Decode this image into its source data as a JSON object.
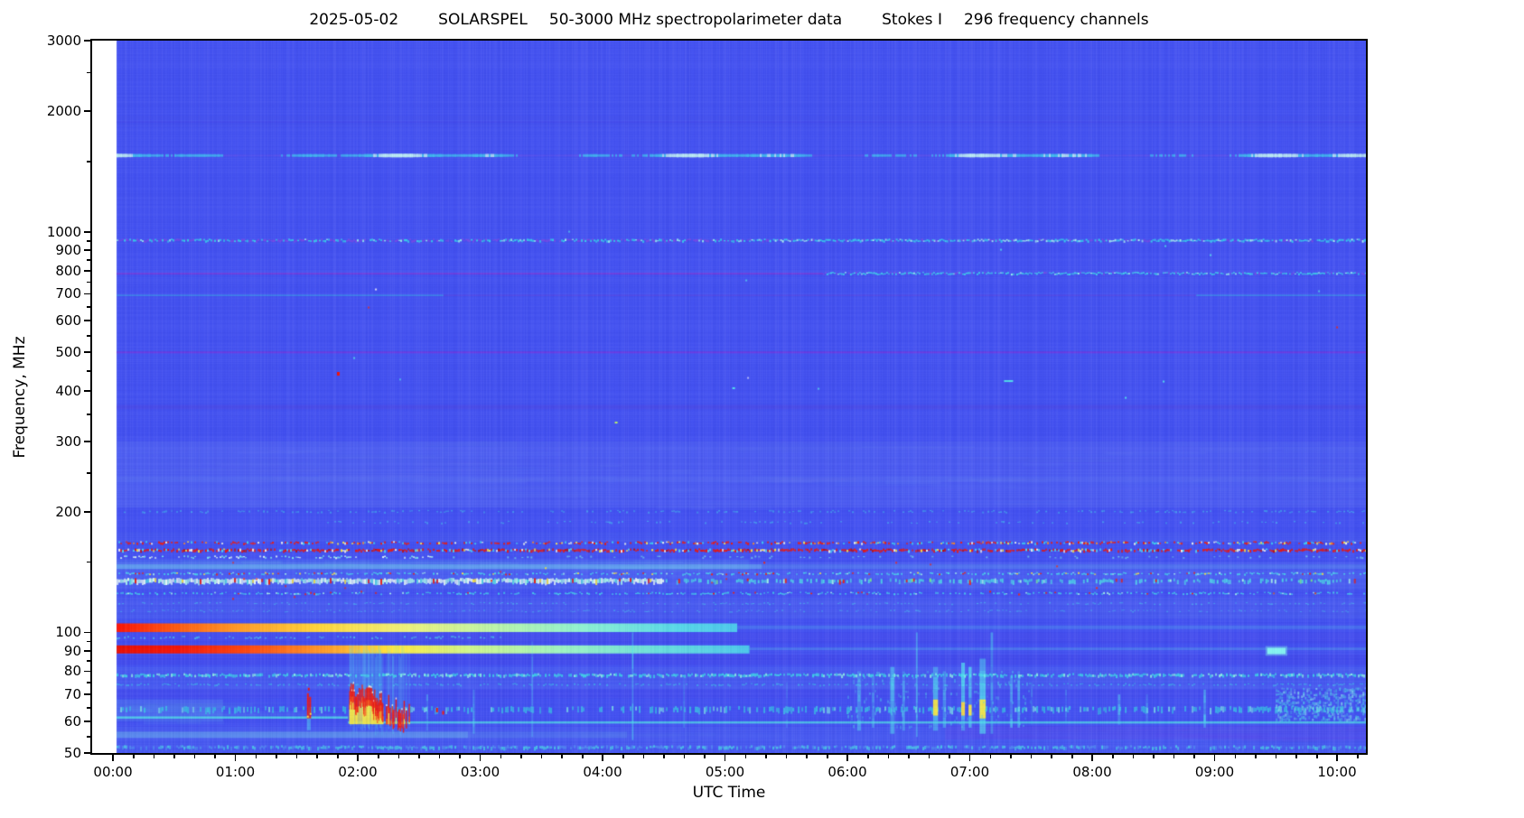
{
  "title": {
    "date": "2025-05-02",
    "instrument": "SOLARSPEL",
    "description": "50-3000 MHz spectropolarimeter data",
    "stokes": "Stokes I",
    "channels": "296 frequency channels"
  },
  "chart_data": {
    "type": "heatmap",
    "title": "2025-05-02  SOLARSPEL  50-3000 MHz spectropolarimeter data  Stokes I  296 frequency channels",
    "xlabel": "UTC Time",
    "ylabel": "Frequency, MHz",
    "x_axis": {
      "min_h": -0.17,
      "max_h": 10.236,
      "data_start_h": 0.03,
      "major_ticks": [
        {
          "h": 0,
          "label": "00:00"
        },
        {
          "h": 1,
          "label": "01:00"
        },
        {
          "h": 2,
          "label": "02:00"
        },
        {
          "h": 3,
          "label": "03:00"
        },
        {
          "h": 4,
          "label": "04:00"
        },
        {
          "h": 5,
          "label": "05:00"
        },
        {
          "h": 6,
          "label": "06:00"
        },
        {
          "h": 7,
          "label": "07:00"
        },
        {
          "h": 8,
          "label": "08:00"
        },
        {
          "h": 9,
          "label": "09:00"
        },
        {
          "h": 10,
          "label": "10:00"
        }
      ],
      "minor_step_min": 10
    },
    "y_axis": {
      "scale": "log",
      "min_mhz": 50,
      "max_mhz": 3000,
      "major_ticks": [
        3000,
        2000,
        1000,
        900,
        800,
        700,
        600,
        500,
        400,
        300,
        200,
        100,
        90,
        80,
        70,
        60,
        50
      ],
      "minor_ticks": [
        2500,
        1500,
        950,
        850,
        750,
        650,
        550,
        450,
        350,
        250,
        150,
        95,
        85,
        75,
        65,
        55
      ]
    },
    "colors": {
      "background": "#4452f1",
      "cyan": "#3fd9ec",
      "pale_cyan": "#a8f6ea",
      "purple": "#7a4be6",
      "red": "#f3200c",
      "yellow": "#ffe93e",
      "white_hot": "#eefff6"
    },
    "zones": [
      {
        "f0": 300,
        "f1": 205,
        "color": "#5d73f5",
        "alpha": 0.32,
        "mottle": 140
      },
      {
        "f0": 300,
        "f1": 205,
        "t1": 3.3,
        "color": "#5d73f5",
        "alpha": 0.16,
        "mottle": 60
      },
      {
        "f0": 178,
        "f1": 168,
        "color": "#5670f4",
        "alpha": 0.2,
        "mottle": 30
      },
      {
        "f0": 150,
        "f1": 128,
        "color": "#5d7df6",
        "alpha": 0.28,
        "mottle": 60
      },
      {
        "f0": 122,
        "f1": 108,
        "color": "#5876f4",
        "alpha": 0.26,
        "mottle": 40
      },
      {
        "f0": 82,
        "f1": 72,
        "color": "#5470f2",
        "alpha": 0.3,
        "mottle": 50
      },
      {
        "f0": 58,
        "f1": 50,
        "color": "#5575f2",
        "alpha": 0.26,
        "mottle": 50
      },
      {
        "f0": 68,
        "f1": 60,
        "t1": 0.9,
        "color": "#6ed2ec",
        "alpha": 0.16,
        "mottle": 20
      },
      {
        "f0": 100,
        "f1": 94,
        "color": "#4340e6",
        "alpha": 0.28,
        "mottle": 0
      },
      {
        "f0": 88,
        "f1": 83,
        "color": "#4340e6",
        "alpha": 0.33,
        "mottle": 0
      },
      {
        "f0": 72,
        "f1": 68.5,
        "color": "#4944e8",
        "alpha": 0.28,
        "mottle": 0
      },
      {
        "f0": 58.5,
        "f1": 54,
        "t0": 6.8,
        "color": "#5c42e8",
        "alpha": 0.3,
        "mottle": 20
      },
      {
        "f0": 1950,
        "f1": 1820,
        "color": "#4a46e8",
        "alpha": 0.12,
        "mottle": 0
      },
      {
        "f0": 245,
        "f1": 238,
        "color": "#6b86f7",
        "alpha": 0.22,
        "mottle": 30
      },
      {
        "f0": 152,
        "f1": 143,
        "t1": 5.2,
        "color": "#74d8ee",
        "alpha": 0.14,
        "mottle": 30
      }
    ],
    "gradient_bands": [
      {
        "f0": 105.3,
        "f1": 100.2,
        "t0": 0.03,
        "t1": 5.1,
        "stops": [
          [
            0.03,
            "#fa1408"
          ],
          [
            0.5,
            "#fe5a12"
          ],
          [
            1.0,
            "#ff9826"
          ],
          [
            1.7,
            "#ffd83c"
          ],
          [
            2.4,
            "#eef27c"
          ],
          [
            3.1,
            "#bdf6a8"
          ],
          [
            3.9,
            "#8af0d4"
          ],
          [
            4.6,
            "#58d8e8"
          ],
          [
            5.1,
            "#4cc8ec"
          ]
        ]
      },
      {
        "f0": 92.8,
        "f1": 88.6,
        "t0": 0.03,
        "t1": 5.2,
        "stops": [
          [
            0.03,
            "#e80f04"
          ],
          [
            0.55,
            "#f51708"
          ],
          [
            1.15,
            "#fe4c10"
          ],
          [
            1.75,
            "#ff9f2a"
          ],
          [
            2.3,
            "#ffe93e"
          ],
          [
            2.9,
            "#d2f78a"
          ],
          [
            3.7,
            "#9cf4c4"
          ],
          [
            4.5,
            "#66dede"
          ],
          [
            5.2,
            "#4cc8ec"
          ]
        ]
      }
    ],
    "lines": [
      {
        "f": 1880,
        "th": 2,
        "color": "#4a46e8",
        "alpha": 0.3
      },
      {
        "f": 786,
        "t1": 5.8,
        "th": 2,
        "color": "#7140df",
        "alpha": 0.95
      },
      {
        "f": 694,
        "t1": 2.7,
        "th": 1.5,
        "color": "#3cc4e6",
        "alpha": 0.5
      },
      {
        "f": 694,
        "t0": 2.7,
        "t1": 8.85,
        "th": 1.5,
        "color": "#6847e2",
        "alpha": 0.5
      },
      {
        "f": 694,
        "t0": 8.85,
        "th": 1.5,
        "color": "#3cc4e6",
        "alpha": 0.5
      },
      {
        "f": 500,
        "th": 2,
        "color": "#6e3ce2",
        "alpha": 0.95
      },
      {
        "f": 365,
        "th": 5,
        "color": "#5545e2",
        "alpha": 0.4
      },
      {
        "f": 146,
        "t1": 5.3,
        "th": 5,
        "color": "#7ce4ee",
        "alpha": 0.38
      },
      {
        "f": 146,
        "t0": 5.3,
        "th": 5,
        "color": "#7ce4ee",
        "alpha": 0.15
      },
      {
        "f": 103,
        "t0": 5.1,
        "th": 4,
        "color": "#55bce8",
        "alpha": 0.28
      },
      {
        "f": 91,
        "t0": 5.2,
        "th": 3,
        "color": "#55c4e8",
        "alpha": 0.28
      },
      {
        "f": 61.3,
        "t1": 1.92,
        "th": 2.5,
        "color": "#52d8e8",
        "alpha": 0.85
      },
      {
        "f": 59.6,
        "t0": 1.92,
        "th": 2.5,
        "color": "#52d8e8",
        "alpha": 0.8
      },
      {
        "f": 55.5,
        "t1": 2.9,
        "th": 7,
        "color": "#7ad8ea",
        "alpha": 0.38
      },
      {
        "f": 55.5,
        "t0": 2.9,
        "t1": 4.2,
        "th": 7,
        "color": "#7ad8ea",
        "alpha": 0.14
      }
    ],
    "waveline": {
      "f": 1550,
      "th": 3,
      "colors": {
        "low": "#6a52ea",
        "mid": "#3fdeee",
        "high": "#c8fbf4"
      }
    },
    "speckles": [
      {
        "f": 950,
        "th": 2.5,
        "t1": 5.2,
        "density": 0.95,
        "palette": [
          [
            "#7a4be6",
            0.45
          ],
          [
            "#38d2ea",
            0.4
          ],
          [
            "#9af4ee",
            0.15
          ]
        ]
      },
      {
        "f": 950,
        "th": 2.5,
        "t0": 5.2,
        "density": 0.95,
        "palette": [
          [
            "#38d8ec",
            0.55
          ],
          [
            "#aef8f0",
            0.28
          ],
          [
            "#7a4be6",
            0.17
          ]
        ]
      },
      {
        "f": 786,
        "th": 2,
        "t0": 5.8,
        "density": 0.9,
        "palette": [
          [
            "#3fd2ea",
            0.7
          ],
          [
            "#9af4ee",
            0.15
          ],
          [
            "#7a4be6",
            0.15
          ]
        ]
      },
      {
        "f": 200,
        "th": 2,
        "density": 0.3,
        "alpha": 0.6,
        "palette": [
          [
            "#45c8ec",
            1
          ]
        ]
      },
      {
        "f": 188,
        "th": 2,
        "t0": 1.72,
        "density": 0.22,
        "alpha": 0.6,
        "palette": [
          [
            "#45c8ec",
            1
          ]
        ]
      },
      {
        "f": 167,
        "th": 2.5,
        "density": 0.6,
        "palette": [
          [
            "#f31b0b",
            0.52
          ],
          [
            "#3fd9ec",
            0.2
          ],
          [
            "#ff8a20",
            0.1
          ],
          [
            "#ffee4e",
            0.08
          ],
          [
            "#f6fde8",
            0.1
          ]
        ]
      },
      {
        "f": 160,
        "th": 3,
        "density": 0.85,
        "palette": [
          [
            "#ee1408",
            0.62
          ],
          [
            "#c40d04",
            0.1
          ],
          [
            "#52dff0",
            0.1
          ],
          [
            "#ffe93e",
            0.08
          ],
          [
            "#fffbe8",
            0.1
          ]
        ]
      },
      {
        "f": 154,
        "th": 2,
        "t1": 2.6,
        "density": 0.5,
        "palette": [
          [
            "#e2fef4",
            0.5
          ],
          [
            "#7deee8",
            0.5
          ]
        ]
      },
      {
        "f": 154,
        "th": 2,
        "t0": 2.6,
        "density": 0.15,
        "alpha": 0.7,
        "palette": [
          [
            "#7deee8",
            1
          ]
        ]
      },
      {
        "f": 140,
        "th": 2,
        "density": 0.55,
        "palette": [
          [
            "#49d8ea",
            0.75
          ],
          [
            "#a8f6ea",
            0.1
          ],
          [
            "#f3240c",
            0.08
          ],
          [
            "#ffe93e",
            0.07
          ]
        ]
      },
      {
        "f": 134,
        "th": 6,
        "t1": 4.5,
        "density": 0.97,
        "palette": [
          [
            "#eefff6",
            0.45
          ],
          [
            "#a8f6ea",
            0.35
          ],
          [
            "#55e0e2",
            0.12
          ],
          [
            "#f3200c",
            0.04
          ],
          [
            "#ffe93e",
            0.04
          ]
        ]
      },
      {
        "f": 134,
        "th": 5,
        "t0": 4.5,
        "density": 0.5,
        "palette": [
          [
            "#4fd4e8",
            0.8
          ],
          [
            "#a8f6ea",
            0.1
          ],
          [
            "#f3200c",
            0.06
          ],
          [
            "#7af08a",
            0.04
          ]
        ]
      },
      {
        "f": 125,
        "th": 2,
        "density": 0.5,
        "palette": [
          [
            "#44ccea",
            0.85
          ],
          [
            "#f3240c",
            0.06
          ],
          [
            "#a8f6ea",
            0.09
          ]
        ]
      },
      {
        "f": 118,
        "th": 1.5,
        "density": 0.25,
        "alpha": 0.6,
        "palette": [
          [
            "#44ccea",
            1
          ]
        ]
      },
      {
        "f": 113,
        "th": 1.5,
        "density": 0.3,
        "alpha": 0.55,
        "palette": [
          [
            "#47c4ec",
            1
          ]
        ]
      },
      {
        "f": 97,
        "th": 2,
        "t1": 3.2,
        "density": 0.35,
        "alpha": 0.8,
        "palette": [
          [
            "#49d0e8",
            1
          ]
        ]
      },
      {
        "f": 78,
        "th": 3.5,
        "density": 0.75,
        "palette": [
          [
            "#3ecfe8",
            0.7
          ],
          [
            "#8eeee6",
            0.3
          ]
        ]
      },
      {
        "f": 74,
        "th": 2,
        "density": 0.4,
        "alpha": 0.6,
        "palette": [
          [
            "#3ecfe8",
            1
          ]
        ]
      },
      {
        "f": 64,
        "th": 7,
        "density": 0.5,
        "alpha": 0.85,
        "palette": [
          [
            "#38c4e4",
            0.8
          ],
          [
            "#7adee8",
            0.2
          ]
        ]
      },
      {
        "f": 51.5,
        "th": 4,
        "density": 0.65,
        "palette": [
          [
            "#49c0e8",
            0.6
          ],
          [
            "#4e86f0",
            0.4
          ]
        ]
      }
    ],
    "events": {
      "spikes": [
        {
          "t": 1.585,
          "f0": 70.5,
          "f1": 61,
          "color": "#f6150a",
          "fleck": "#ffe93e",
          "tail_f": 57
        }
      ],
      "burst": {
        "t0": 1.93,
        "t1": 2.42,
        "dense_until": 2.2,
        "f_base": 59,
        "f_peak_start": 73,
        "f_peak_end": 64,
        "halo": {
          "f0": 86,
          "f1": 55,
          "color": "#55e8f0",
          "alpha": 0.22
        },
        "colors": {
          "core": "#f6150a",
          "under": "#ffe93e",
          "tip": "#fff8dc"
        }
      },
      "streaks": [
        {
          "t": 2.56,
          "w": 0.015,
          "f0": 70,
          "f1": 57,
          "alpha": 0.3
        },
        {
          "t": 2.94,
          "w": 0.015,
          "f0": 72,
          "f1": 56,
          "alpha": 0.4
        },
        {
          "t": 3.42,
          "w": 0.01,
          "f0": 95,
          "f1": 55,
          "alpha": 0.3
        },
        {
          "t": 4.24,
          "w": 0.012,
          "f0": 100,
          "f1": 54,
          "alpha": 0.5
        },
        {
          "t": 4.66,
          "w": 0.01,
          "f0": 78,
          "f1": 58,
          "alpha": 0.25
        },
        {
          "t": 5.5,
          "w": 0.01,
          "f0": 75,
          "f1": 58,
          "alpha": 0.2
        },
        {
          "t": 6.08,
          "w": 0.03,
          "f0": 80,
          "f1": 57,
          "alpha": 0.45
        },
        {
          "t": 6.2,
          "w": 0.02,
          "f0": 78,
          "f1": 58,
          "alpha": 0.3
        },
        {
          "t": 6.35,
          "w": 0.035,
          "f0": 82,
          "f1": 56,
          "alpha": 0.55
        },
        {
          "t": 6.45,
          "w": 0.02,
          "f0": 80,
          "f1": 57,
          "alpha": 0.4
        },
        {
          "t": 6.56,
          "w": 0.015,
          "f0": 100,
          "f1": 55,
          "alpha": 0.45
        },
        {
          "t": 6.7,
          "w": 0.04,
          "f0": 82,
          "f1": 57,
          "alpha": 0.6,
          "core": {
            "f0": 68,
            "f1": 62,
            "color": "#ffe93e"
          }
        },
        {
          "t": 6.78,
          "w": 0.025,
          "f0": 80,
          "f1": 58,
          "alpha": 0.45
        },
        {
          "t": 6.93,
          "w": 0.03,
          "f0": 84,
          "f1": 57,
          "alpha": 0.6,
          "core": {
            "f0": 67,
            "f1": 62,
            "color": "#ffd83c"
          }
        },
        {
          "t": 6.99,
          "w": 0.025,
          "f0": 82,
          "f1": 58,
          "alpha": 0.55,
          "core": {
            "f0": 66,
            "f1": 62,
            "color": "#ffe93e"
          }
        },
        {
          "t": 7.08,
          "w": 0.05,
          "f0": 86,
          "f1": 56,
          "alpha": 0.65,
          "core": {
            "f0": 68,
            "f1": 61,
            "color": "#ffe93e"
          }
        },
        {
          "t": 7.17,
          "w": 0.02,
          "f0": 100,
          "f1": 56,
          "alpha": 0.4
        },
        {
          "t": 7.33,
          "w": 0.02,
          "f0": 78,
          "f1": 58,
          "alpha": 0.45
        },
        {
          "t": 7.39,
          "w": 0.02,
          "f0": 80,
          "f1": 58,
          "alpha": 0.5
        },
        {
          "t": 7.5,
          "w": 0.012,
          "f0": 75,
          "f1": 59,
          "alpha": 0.25
        },
        {
          "t": 7.78,
          "w": 0.012,
          "f0": 72,
          "f1": 60,
          "alpha": 0.25
        },
        {
          "t": 8.21,
          "w": 0.02,
          "f0": 70,
          "f1": 59,
          "alpha": 0.5
        },
        {
          "t": 8.44,
          "w": 0.015,
          "f0": 70,
          "f1": 60,
          "alpha": 0.3
        },
        {
          "t": 8.91,
          "w": 0.018,
          "f0": 72,
          "f1": 58,
          "alpha": 0.6
        }
      ],
      "blobs": [
        {
          "t0": 9.43,
          "t1": 9.58,
          "f0": 91.5,
          "f1": 88.3,
          "color": "#86f8f0",
          "alpha": 0.95
        }
      ],
      "patches": [
        {
          "t0": 9.5,
          "t1": 10.236,
          "f0": 72.5,
          "f1": 61,
          "density": 0.5,
          "alpha": 0.6,
          "palette": [
            [
              "#4fd0ea",
              0.7
            ],
            [
              "#8ae8f0",
              0.3
            ]
          ]
        },
        {
          "t0": 6.0,
          "t1": 7.5,
          "f0": 80,
          "f1": 58,
          "density": 0.06,
          "alpha": 0.4,
          "palette": [
            [
              "#4fd0ea",
              1
            ]
          ]
        }
      ],
      "dots": [
        {
          "t": 1.83,
          "f": 442,
          "color": "#f6150a",
          "w": 3,
          "h": 4
        },
        {
          "t": 4.1,
          "f": 334,
          "color": "#b8f26a",
          "w": 3,
          "h": 2
        },
        {
          "t": 5.06,
          "f": 407,
          "color": "#52e0ec",
          "w": 3,
          "h": 2
        },
        {
          "t": 7.28,
          "f": 424,
          "color": "#52e0ec",
          "w": 10,
          "h": 2
        },
        {
          "t": 2.64,
          "f": 64,
          "color": "#f6150a",
          "w": 2,
          "h": 5
        },
        {
          "t": 2.69,
          "f": 63,
          "color": "#f6150a",
          "w": 2,
          "h": 4
        }
      ],
      "dot_fields": [
        {
          "t0": 2.0,
          "t1": 2.55,
          "f0": 430,
          "f1": 398,
          "density": 0.0045,
          "palette": [
            [
              "#52e0ec",
              1
            ]
          ]
        },
        {
          "t0": 0.03,
          "t1": 10.236,
          "f0": 1200,
          "f1": 330,
          "density": 0.00012,
          "palette": [
            [
              "#52e0ec",
              0.8
            ],
            [
              "#ffffff",
              0.1
            ],
            [
              "#f3240c",
              0.1
            ]
          ]
        },
        {
          "t0": 0.03,
          "t1": 10.236,
          "f0": 150,
          "f1": 120,
          "density": 0.0015,
          "palette": [
            [
              "#f3240c",
              0.8
            ],
            [
              "#ffe93e",
              0.2
            ]
          ]
        }
      ]
    }
  }
}
